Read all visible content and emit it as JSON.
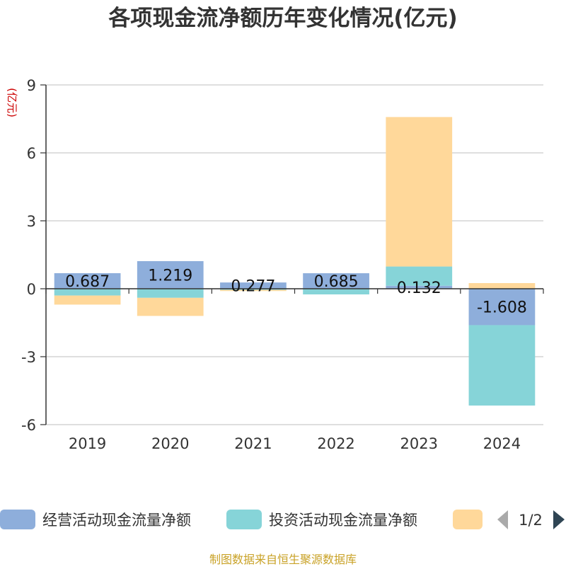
{
  "chart_data": {
    "type": "bar",
    "stacked": true,
    "title": "各项现金流净额历年变化情况(亿元)",
    "ylabel": "(亿元)",
    "categories": [
      "2019",
      "2020",
      "2021",
      "2022",
      "2023",
      "2024"
    ],
    "ylim": [
      -6,
      9
    ],
    "yticks": [
      -6,
      -3,
      0,
      3,
      6,
      9
    ],
    "grid": true,
    "series": [
      {
        "name": "经营活动现金流量净额",
        "color": "#8eaedb",
        "values": [
          0.687,
          1.219,
          0.277,
          0.685,
          0.132,
          -1.608
        ],
        "data_labels": [
          "0.687",
          "1.219",
          "0.277",
          "0.685",
          "0.132",
          "-1.608"
        ]
      },
      {
        "name": "投资活动现金流量净额",
        "color": "#86d4d8",
        "values": [
          -0.3,
          -0.4,
          -0.05,
          -0.25,
          0.85,
          -3.55
        ]
      },
      {
        "color": "#ffd89a",
        "values": [
          -0.4,
          -0.8,
          -0.05,
          0.0,
          6.6,
          0.25
        ]
      }
    ],
    "legend": {
      "position": "bottom",
      "page": "1/2"
    }
  },
  "source": "制图数据来自恒生聚源数据库"
}
